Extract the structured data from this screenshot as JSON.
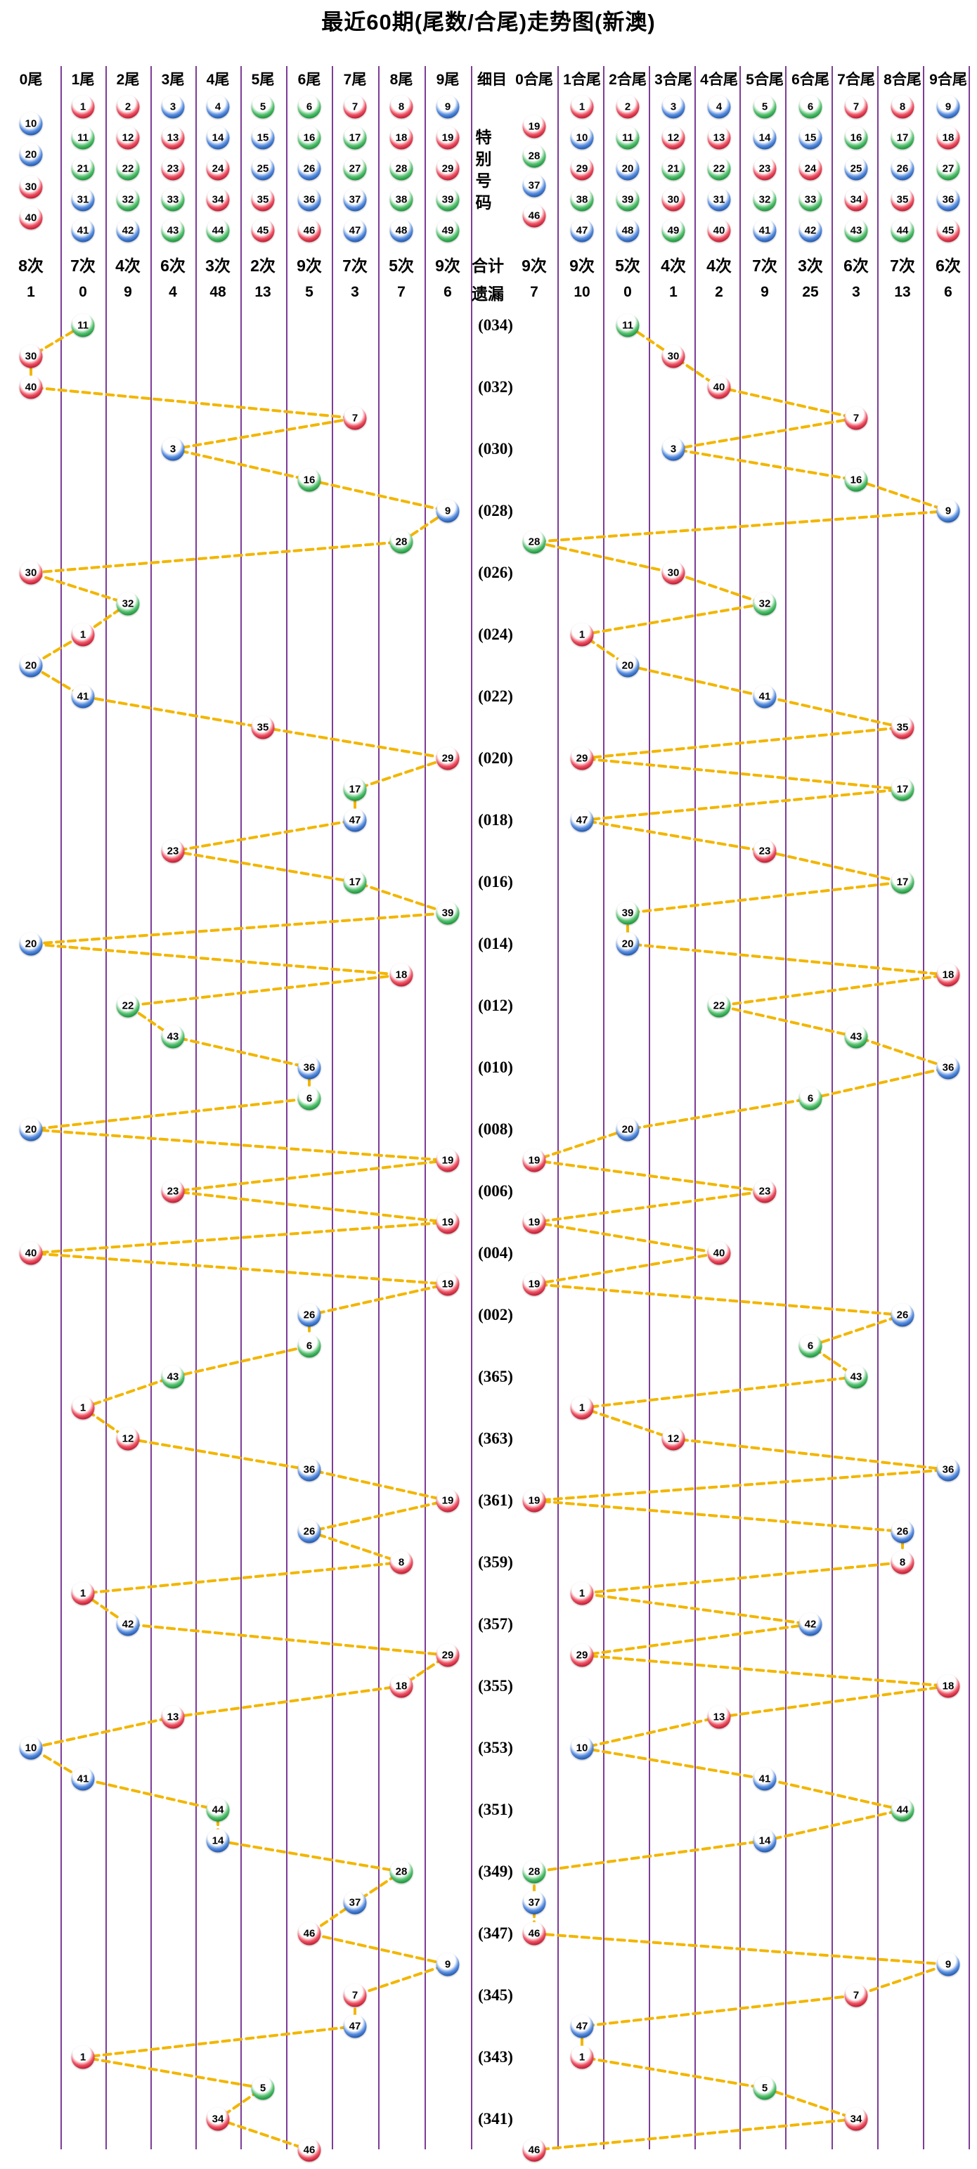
{
  "title": "最近60期(尾数/合尾)走势图(新澳)",
  "palette": {
    "grid_line": "#7d3c98",
    "connector": "#f2b600",
    "red_dark": "#b5122a",
    "red_light": "#ef5566",
    "blue_dark": "#174fa3",
    "blue_light": "#5b8fe0",
    "green_dark": "#128a32",
    "green_light": "#57c271",
    "red_numbers": [
      1,
      2,
      7,
      8,
      12,
      13,
      18,
      19,
      23,
      24,
      29,
      30,
      34,
      35,
      40,
      45,
      46
    ],
    "blue_numbers": [
      3,
      4,
      9,
      10,
      14,
      15,
      20,
      25,
      26,
      31,
      36,
      37,
      41,
      42,
      47,
      48
    ],
    "green_numbers": [
      5,
      6,
      11,
      16,
      17,
      21,
      22,
      27,
      28,
      32,
      33,
      38,
      39,
      43,
      44,
      49
    ]
  },
  "left_section": {
    "columns": [
      {
        "label": "0尾",
        "balls": [
          10,
          20,
          30,
          40
        ]
      },
      {
        "label": "1尾",
        "balls": [
          1,
          11,
          21,
          31,
          41
        ]
      },
      {
        "label": "2尾",
        "balls": [
          2,
          12,
          22,
          32,
          42
        ]
      },
      {
        "label": "3尾",
        "balls": [
          3,
          13,
          23,
          33,
          43
        ]
      },
      {
        "label": "4尾",
        "balls": [
          4,
          14,
          24,
          34,
          44
        ]
      },
      {
        "label": "5尾",
        "balls": [
          5,
          15,
          25,
          35,
          45
        ]
      },
      {
        "label": "6尾",
        "balls": [
          6,
          16,
          26,
          36,
          46
        ]
      },
      {
        "label": "7尾",
        "balls": [
          7,
          17,
          27,
          37,
          47
        ]
      },
      {
        "label": "8尾",
        "balls": [
          8,
          18,
          28,
          38,
          48
        ]
      },
      {
        "label": "9尾",
        "balls": [
          9,
          19,
          29,
          39,
          49
        ]
      }
    ],
    "counts": [
      "8次",
      "7次",
      "4次",
      "6次",
      "3次",
      "2次",
      "9次",
      "7次",
      "5次",
      "9次"
    ],
    "misses": [
      "1",
      "0",
      "9",
      "4",
      "48",
      "13",
      "5",
      "3",
      "7",
      "6"
    ]
  },
  "middle": {
    "detail_label": "细目",
    "special_label": "特别号码",
    "total_label": "合计",
    "miss_label": "遗漏"
  },
  "right_section": {
    "columns": [
      {
        "label": "0合尾",
        "balls": [
          19,
          28,
          37,
          46
        ]
      },
      {
        "label": "1合尾",
        "balls": [
          1,
          10,
          29,
          38,
          47
        ]
      },
      {
        "label": "2合尾",
        "balls": [
          2,
          11,
          20,
          39,
          48
        ]
      },
      {
        "label": "3合尾",
        "balls": [
          3,
          12,
          21,
          30,
          49
        ]
      },
      {
        "label": "4合尾",
        "balls": [
          4,
          13,
          22,
          31,
          40
        ]
      },
      {
        "label": "5合尾",
        "balls": [
          5,
          14,
          23,
          32,
          41
        ]
      },
      {
        "label": "6合尾",
        "balls": [
          6,
          15,
          24,
          33,
          42
        ]
      },
      {
        "label": "7合尾",
        "balls": [
          7,
          16,
          25,
          34,
          43
        ]
      },
      {
        "label": "8合尾",
        "balls": [
          8,
          17,
          26,
          35,
          44
        ]
      },
      {
        "label": "9合尾",
        "balls": [
          9,
          18,
          27,
          36,
          45
        ]
      }
    ],
    "counts": [
      "9次",
      "9次",
      "5次",
      "4次",
      "4次",
      "7次",
      "3次",
      "6次",
      "7次",
      "6次"
    ],
    "misses": [
      "7",
      "10",
      "0",
      "1",
      "2",
      "9",
      "25",
      "3",
      "13",
      "6"
    ]
  },
  "chart_data": {
    "type": "scatter",
    "title": "最近60期(尾数/合尾)走势图(新澳)",
    "description": "60 draws, newest at top; each row plots the special number in its tail-digit column (left half) and its digit-sum-tail column (right half), linked by dashed lines",
    "period_labels": [
      "(034)",
      "(032)",
      "(030)",
      "(028)",
      "(026)",
      "(024)",
      "(022)",
      "(020)",
      "(018)",
      "(016)",
      "(014)",
      "(012)",
      "(010)",
      "(008)",
      "(006)",
      "(004)",
      "(002)",
      "(365)",
      "(363)",
      "(361)",
      "(359)",
      "(357)",
      "(355)",
      "(353)",
      "(351)",
      "(349)",
      "(347)",
      "(345)",
      "(343)",
      "(341)"
    ],
    "specials": [
      11,
      30,
      40,
      7,
      3,
      16,
      9,
      28,
      30,
      32,
      1,
      20,
      41,
      35,
      29,
      17,
      47,
      23,
      17,
      39,
      20,
      18,
      22,
      43,
      36,
      6,
      20,
      19,
      23,
      19,
      40,
      19,
      26,
      6,
      43,
      1,
      12,
      36,
      19,
      26,
      8,
      1,
      42,
      29,
      18,
      13,
      10,
      41,
      44,
      14,
      28,
      37,
      46,
      9,
      7,
      47,
      1,
      5,
      34,
      46
    ]
  }
}
